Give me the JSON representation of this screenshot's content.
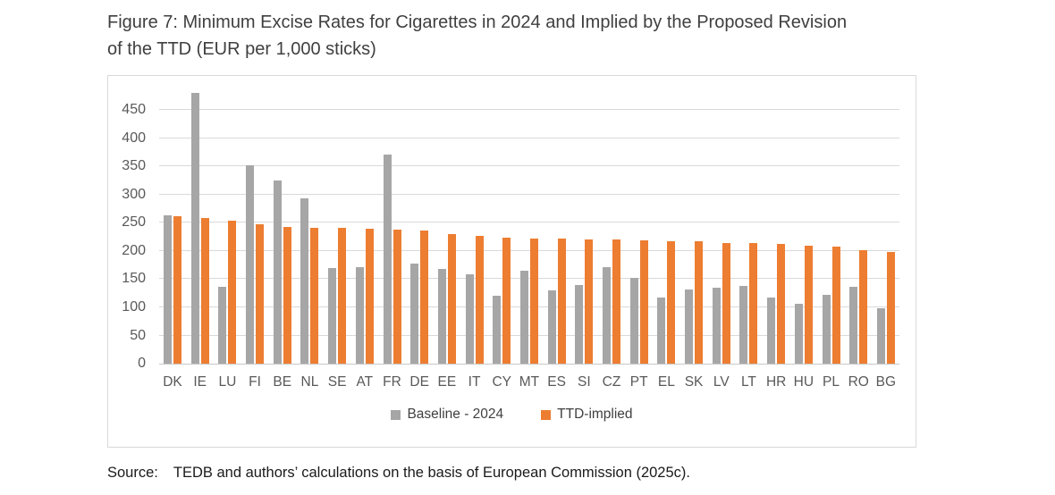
{
  "title": "Figure 7: Minimum Excise Rates for Cigarettes in 2024 and Implied by the Proposed Revision\nof the TTD (EUR per 1,000 sticks)",
  "source": {
    "label": "Source:",
    "text": "TEDB and authors’ calculations on the basis of European Commission (2025c)."
  },
  "chart_data": {
    "type": "bar",
    "title": "Figure 7: Minimum Excise Rates for Cigarettes in 2024 and Implied by the Proposed Revision of the TTD (EUR per 1,000 sticks)",
    "categories": [
      "DK",
      "IE",
      "LU",
      "FI",
      "BE",
      "NL",
      "SE",
      "AT",
      "FR",
      "DE",
      "EE",
      "IT",
      "CY",
      "MT",
      "ES",
      "SI",
      "CZ",
      "PT",
      "EL",
      "SK",
      "LV",
      "LT",
      "HR",
      "HU",
      "PL",
      "RO",
      "BG"
    ],
    "series": [
      {
        "name": "Baseline - 2024",
        "color": "#a6a6a6",
        "values": [
          263,
          480,
          137,
          353,
          326,
          293,
          170,
          172,
          371,
          178,
          168,
          159,
          120,
          165,
          130,
          140,
          171,
          153,
          117,
          132,
          135,
          138,
          118,
          107,
          122,
          136,
          99
        ]
      },
      {
        "name": "TTD-implied",
        "color": "#ed7d31",
        "values": [
          262,
          258,
          254,
          248,
          242,
          241,
          241,
          240,
          238,
          236,
          230,
          227,
          224,
          222,
          222,
          221,
          220,
          219,
          218,
          217,
          215,
          215,
          212,
          209,
          208,
          201,
          199
        ]
      }
    ],
    "xlabel": "",
    "ylabel": "",
    "ylim": [
      0,
      495
    ],
    "yticks": [
      0,
      50,
      100,
      150,
      200,
      250,
      300,
      350,
      400,
      450
    ],
    "grid": true,
    "legend_position": "bottom",
    "gridline_color": "#d9d9d9"
  }
}
